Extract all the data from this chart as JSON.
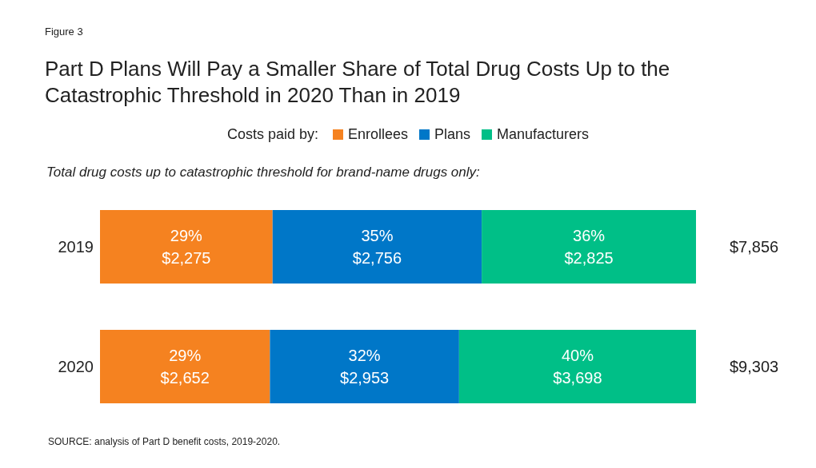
{
  "chart_data": {
    "type": "bar",
    "orientation": "horizontal",
    "stacked": true,
    "title": "Part D Plans Will Pay a Smaller Share of Total Drug Costs Up to the Catastrophic Threshold in 2020 Than in 2019",
    "subtitle": "Total drug costs up to catastrophic threshold for brand-name drugs only:",
    "legend_title": "Costs paid by:",
    "legend": "top",
    "categories": [
      "2019",
      "2020"
    ],
    "xlim": [
      0,
      100
    ],
    "series": [
      {
        "name": "Enrollees",
        "color": "#f58220",
        "values": [
          28.96,
          28.51
        ],
        "value_labels": [
          "29%\n$2,275",
          "29%\n$2,652"
        ]
      },
      {
        "name": "Plans",
        "color": "#0077c8",
        "values": [
          35.08,
          31.74
        ],
        "value_labels": [
          "35%\n$2,756",
          "32%\n$2,953"
        ]
      },
      {
        "name": "Manufacturers",
        "color": "#00bf87",
        "values": [
          35.96,
          39.75
        ],
        "value_labels": [
          "36%\n$2,825",
          "40%\n$3,698"
        ]
      }
    ],
    "annotations": [
      "Figure 3",
      "SOURCE: analysis of Part D benefit costs, 2019-2020.",
      "$7,856",
      "$9,303"
    ]
  }
}
